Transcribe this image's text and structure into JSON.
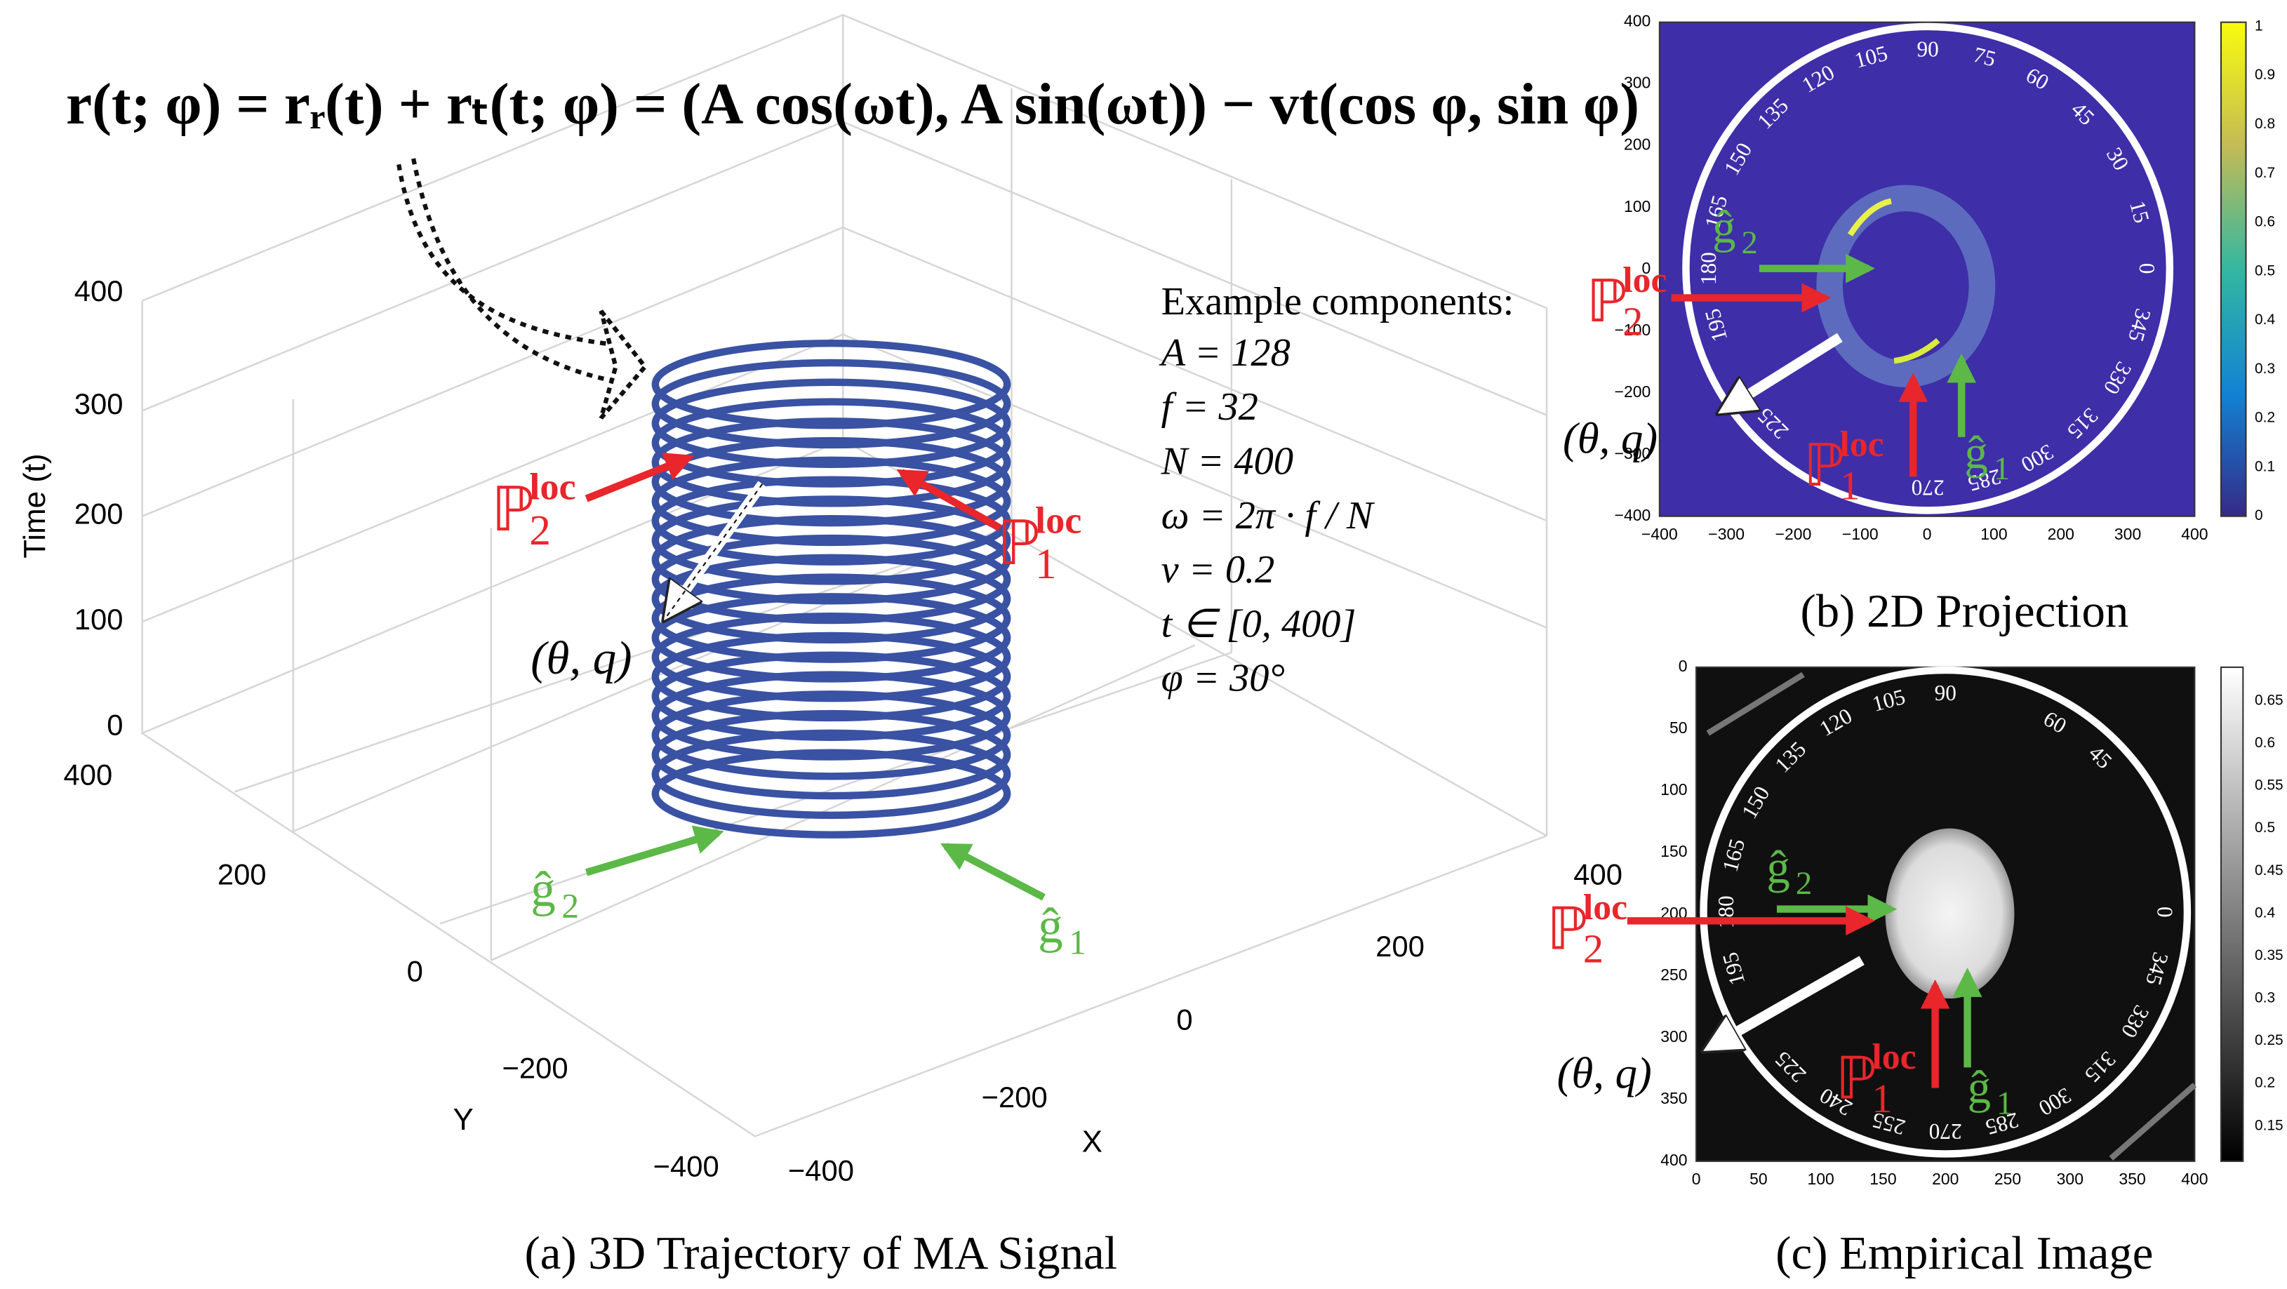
{
  "panel_a": {
    "equation": "r(t; φ) = rᵣ(t) + rₜ(t; φ) = (A cos(ωt), A sin(ωt)) − vt(cos φ, sin φ)",
    "z_axis_label": "Time (t)",
    "z_ticks": [
      "0",
      "100",
      "200",
      "300",
      "400"
    ],
    "y_axis_label": "Y",
    "y_ticks": [
      "400",
      "200",
      "0",
      "−200",
      "−400"
    ],
    "x_axis_label": "X",
    "x_ticks": [
      "−400",
      "−200",
      "0",
      "200",
      "400"
    ],
    "components_title": "Example components:",
    "components": [
      "A = 128",
      "f = 32",
      "N = 400",
      "ω = 2π · f / N",
      "v = 0.2",
      "t ∈ [0, 400]",
      "φ = 30°"
    ],
    "annotations": {
      "p2": {
        "symbol": "ℙ",
        "sup": "loc",
        "sub": "2"
      },
      "p1": {
        "symbol": "ℙ",
        "sup": "loc",
        "sub": "1"
      },
      "g2": {
        "symbol": "ĝ",
        "sub": "2"
      },
      "g1": {
        "symbol": "ĝ",
        "sub": "1"
      },
      "theta_q": "(θ,  q)"
    },
    "caption": "(a) 3D Trajectory of MA Signal"
  },
  "panel_b": {
    "x_ticks": [
      "−400",
      "−300",
      "−200",
      "−100",
      "0",
      "100",
      "200",
      "300",
      "400"
    ],
    "y_ticks": [
      "400",
      "300",
      "200",
      "100",
      "0",
      "−100",
      "−200",
      "−300",
      "−400"
    ],
    "colorbar_ticks": [
      "0",
      "0.1",
      "0.2",
      "0.3",
      "0.4",
      "0.5",
      "0.6",
      "0.7",
      "0.8",
      "0.9",
      "1"
    ],
    "angles": [
      0,
      15,
      30,
      45,
      60,
      75,
      90,
      105,
      120,
      135,
      150,
      165,
      180,
      195,
      225,
      270,
      285,
      300,
      315,
      330,
      345
    ],
    "annotations": {
      "p2": {
        "symbol": "ℙ",
        "sup": "loc",
        "sub": "2"
      },
      "p1": {
        "symbol": "ℙ",
        "sup": "loc",
        "sub": "1"
      },
      "g2": {
        "symbol": "ĝ",
        "sub": "2"
      },
      "g1": {
        "symbol": "ĝ",
        "sub": "1"
      },
      "theta_q": "(θ,  q)"
    },
    "caption": "(b) 2D Projection"
  },
  "panel_c": {
    "x_ticks": [
      "0",
      "50",
      "100",
      "150",
      "200",
      "250",
      "300",
      "350",
      "400"
    ],
    "y_ticks": [
      "0",
      "50",
      "100",
      "150",
      "200",
      "250",
      "300",
      "350",
      "400"
    ],
    "colorbar_ticks": [
      "0.15",
      "0.2",
      "0.25",
      "0.3",
      "0.35",
      "0.4",
      "0.45",
      "0.5",
      "0.55",
      "0.6",
      "0.65"
    ],
    "angles": [
      0,
      45,
      60,
      90,
      105,
      120,
      135,
      150,
      165,
      180,
      195,
      225,
      240,
      255,
      270,
      285,
      300,
      315,
      330,
      345
    ],
    "annotations": {
      "p2": {
        "symbol": "ℙ",
        "sup": "loc",
        "sub": "2"
      },
      "p1": {
        "symbol": "ℙ",
        "sup": "loc",
        "sub": "1"
      },
      "g2": {
        "symbol": "ĝ",
        "sub": "2"
      },
      "g1": {
        "symbol": "ĝ",
        "sub": "1"
      },
      "theta_q": "(θ,  q)"
    },
    "caption": "(c) Empirical Image"
  }
}
